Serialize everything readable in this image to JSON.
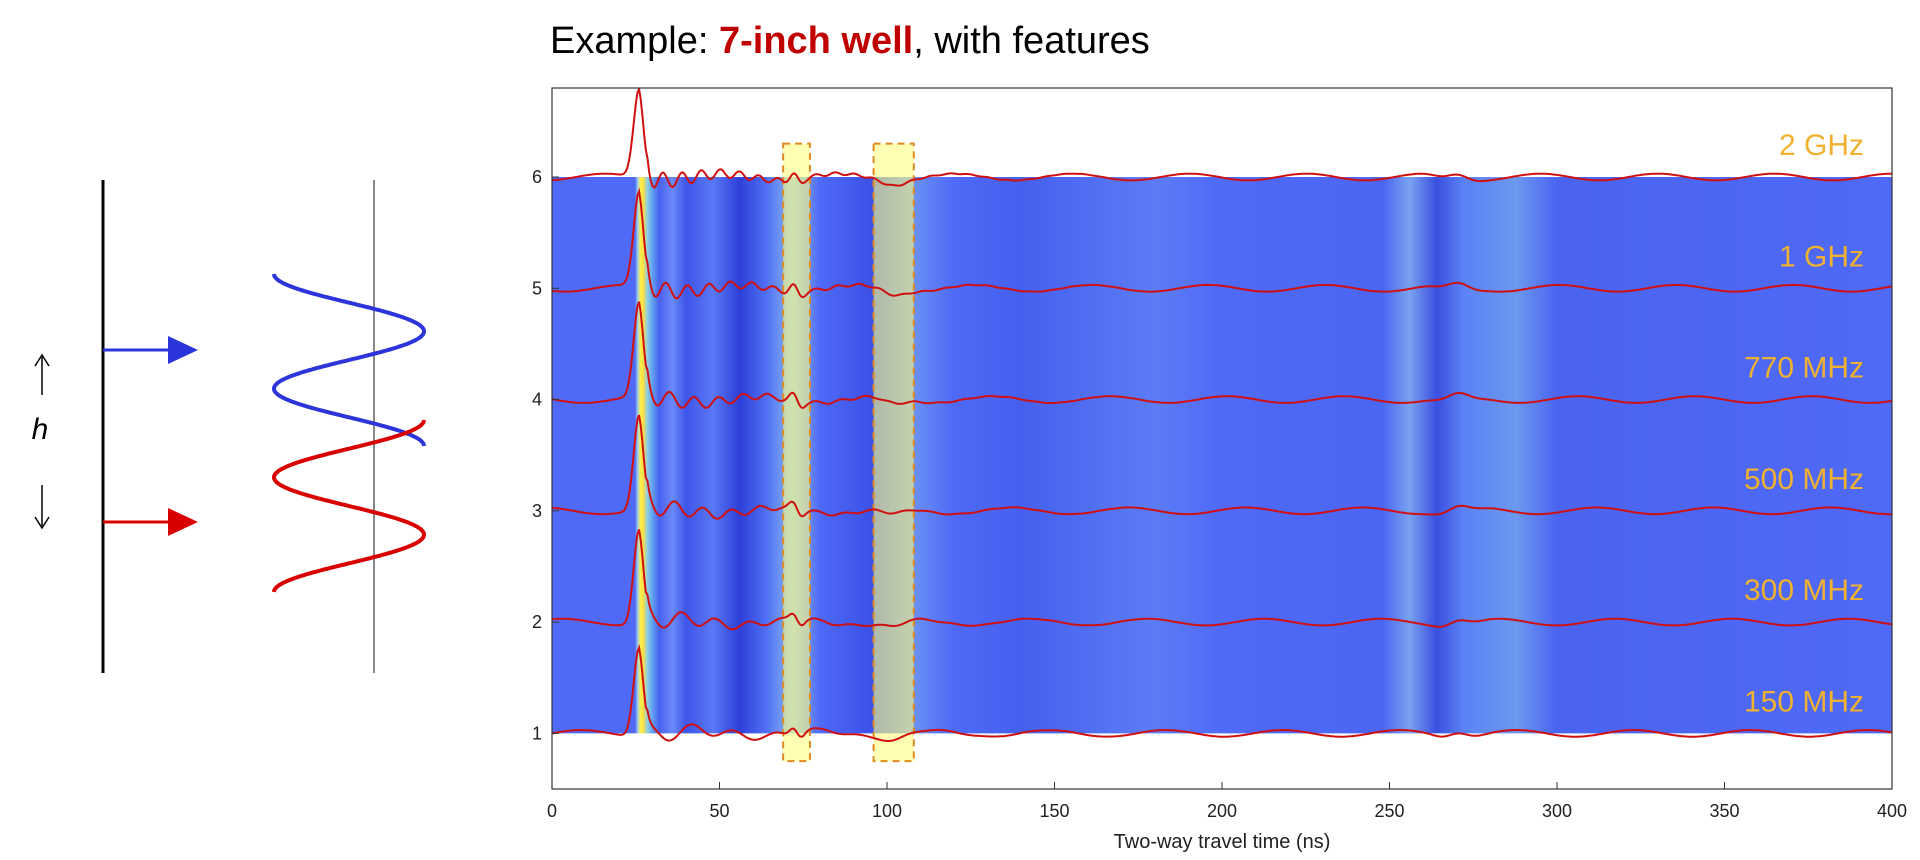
{
  "title": {
    "prefix": "Example: ",
    "highlight": "7-inch well",
    "suffix": ", with features"
  },
  "schematic": {
    "height_label": "h",
    "colors": {
      "upper": "#2b35d9",
      "lower": "#d90000"
    }
  },
  "chart_data": {
    "type": "line",
    "xlabel": "Two-way travel time (ns)",
    "ylabel": "",
    "xlim": [
      0,
      400
    ],
    "ylim": [
      0.5,
      6.8
    ],
    "xticks": [
      0,
      50,
      100,
      150,
      200,
      250,
      300,
      350,
      400
    ],
    "yticks": [
      1,
      2,
      3,
      4,
      5,
      6
    ],
    "grid": false,
    "background": "heatmap of trace amplitude along travel time, baseline 1 to 6",
    "series": [
      {
        "name": "150 MHz",
        "baseline": 1,
        "peak_time": 26,
        "peak_value": 1.8
      },
      {
        "name": "300 MHz",
        "baseline": 2,
        "peak_time": 26,
        "peak_value": 2.85
      },
      {
        "name": "500 MHz",
        "baseline": 3,
        "peak_time": 26,
        "peak_value": 3.85
      },
      {
        "name": "770 MHz",
        "baseline": 4,
        "peak_time": 26,
        "peak_value": 4.85
      },
      {
        "name": "1 GHz",
        "baseline": 5,
        "peak_time": 26,
        "peak_value": 5.85
      },
      {
        "name": "2 GHz",
        "baseline": 6,
        "peak_time": 26,
        "peak_value": 6.8
      }
    ],
    "feature_boxes": [
      {
        "x0": 69,
        "x1": 77,
        "y0": 0.75,
        "y1": 6.3
      },
      {
        "x0": 96,
        "x1": 108,
        "y0": 0.75,
        "y1": 6.3
      }
    ],
    "colors": {
      "trace": "#d01010",
      "label": "#f0b030",
      "field": "#4f6af7",
      "feature": "#ffff80"
    }
  }
}
